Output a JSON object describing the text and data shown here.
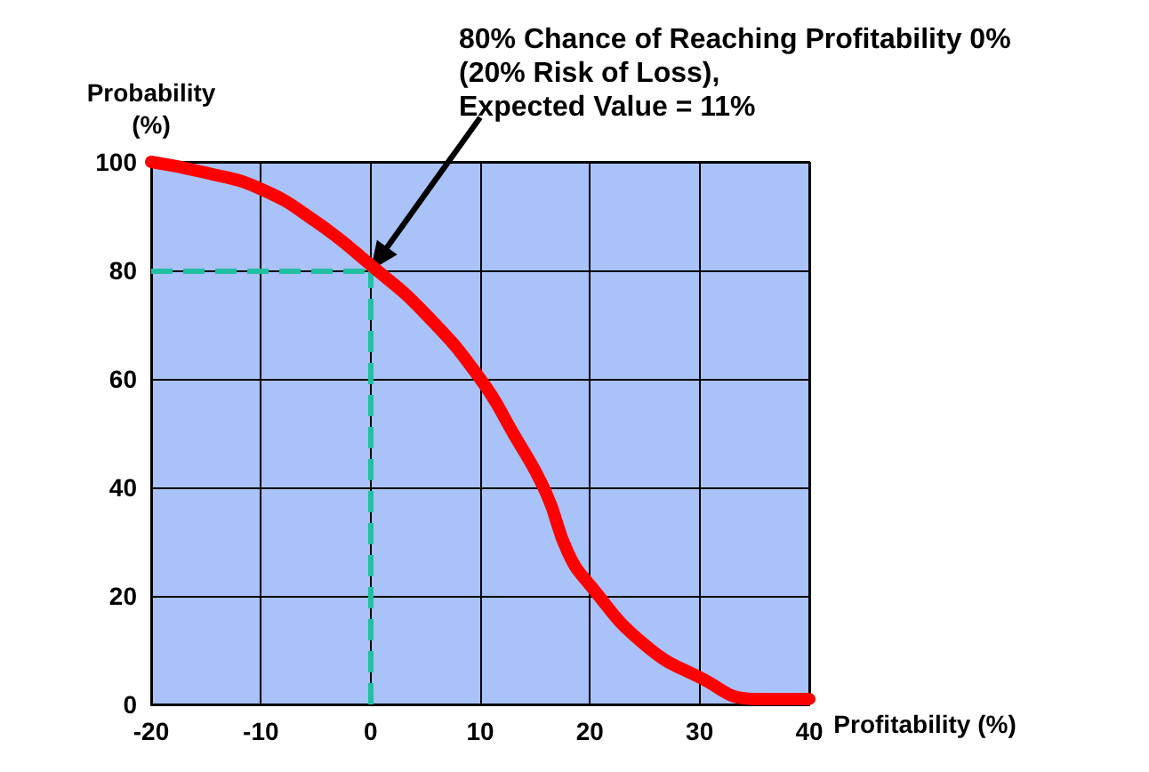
{
  "chart_data": {
    "type": "line",
    "xlabel": "Profitability (%)",
    "ylabel": "Probability\n(%)",
    "x": [
      -20,
      -15,
      -10,
      -5,
      0,
      5,
      10,
      13,
      16,
      18,
      20,
      25,
      30,
      35,
      40
    ],
    "series": [
      {
        "color": "#ff0000",
        "values": [
          100,
          98,
          95,
          89,
          81,
          72,
          60,
          50,
          39,
          28,
          22,
          11,
          5,
          1,
          1
        ]
      }
    ],
    "xlim": [
      -20,
      40
    ],
    "xticks": [
      -20,
      -10,
      0,
      10,
      20,
      30,
      40
    ],
    "ylim": [
      0,
      100
    ],
    "yticks": [
      0,
      20,
      40,
      60,
      80,
      100
    ],
    "grid": true,
    "line_style": "solid",
    "ref_lines": [
      {
        "axis": "y",
        "value": 80,
        "color": "#20c0a0",
        "line_style": "dashed"
      },
      {
        "axis": "x",
        "value": 0,
        "color": "#20c0a0",
        "line_style": "dashed"
      }
    ],
    "annotations": [
      "80% Chance of Reaching Profitability 0%\n(20% Risk of Loss),\nExpected Value = 11%"
    ]
  }
}
